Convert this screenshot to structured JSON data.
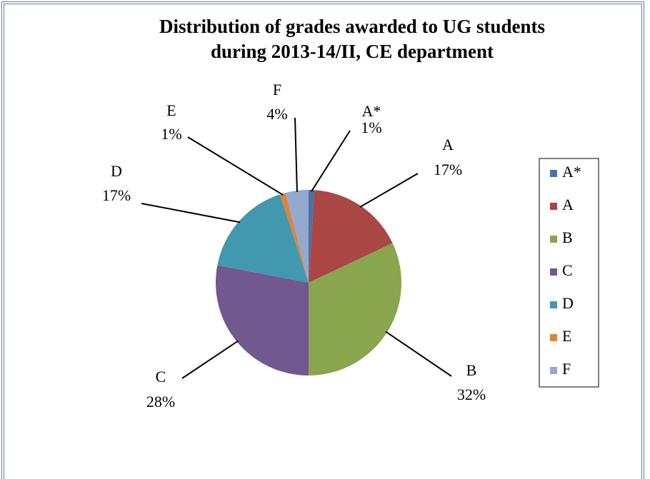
{
  "chart_data": {
    "type": "pie",
    "title": [
      "Distribution of grades awarded to UG students",
      "during 2013-14/II, CE department"
    ],
    "categories": [
      "A*",
      "A",
      "B",
      "C",
      "D",
      "E",
      "F"
    ],
    "values": [
      1,
      17,
      32,
      28,
      17,
      1,
      4
    ],
    "value_labels": [
      "1%",
      "17%",
      "32%",
      "28%",
      "17%",
      "1%",
      "4%"
    ],
    "colors": [
      "#4572a7",
      "#aa4643",
      "#89a54e",
      "#71588f",
      "#4198af",
      "#db843d",
      "#93a9cf"
    ],
    "legend": "right"
  }
}
